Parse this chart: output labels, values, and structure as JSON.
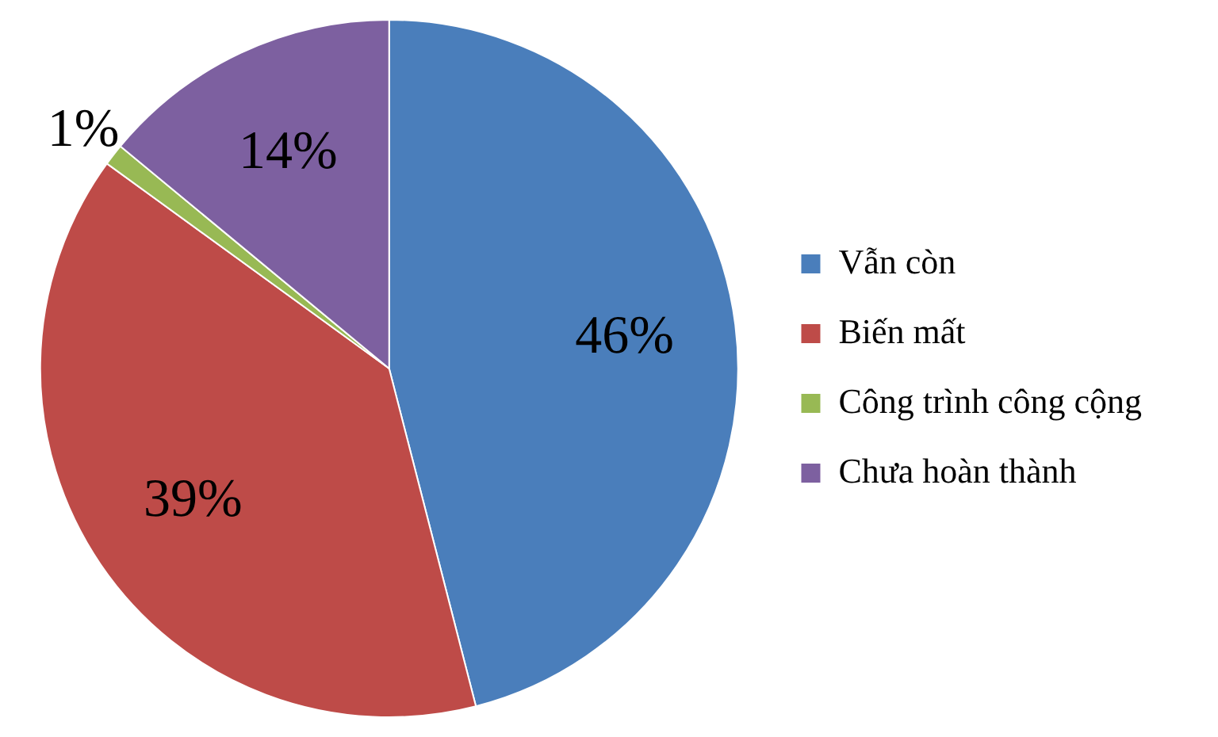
{
  "chart_data": {
    "type": "pie",
    "categories": [
      "Vẫn còn",
      "Biến mất",
      "Công trình công cộng",
      "Chưa hoàn thành"
    ],
    "values": [
      46,
      39,
      1,
      14
    ],
    "colors": [
      "#4a7ebb",
      "#be4b48",
      "#98b954",
      "#7d60a0"
    ],
    "value_labels": [
      "46%",
      "39%",
      "1%",
      "14%"
    ],
    "legend": "right"
  }
}
